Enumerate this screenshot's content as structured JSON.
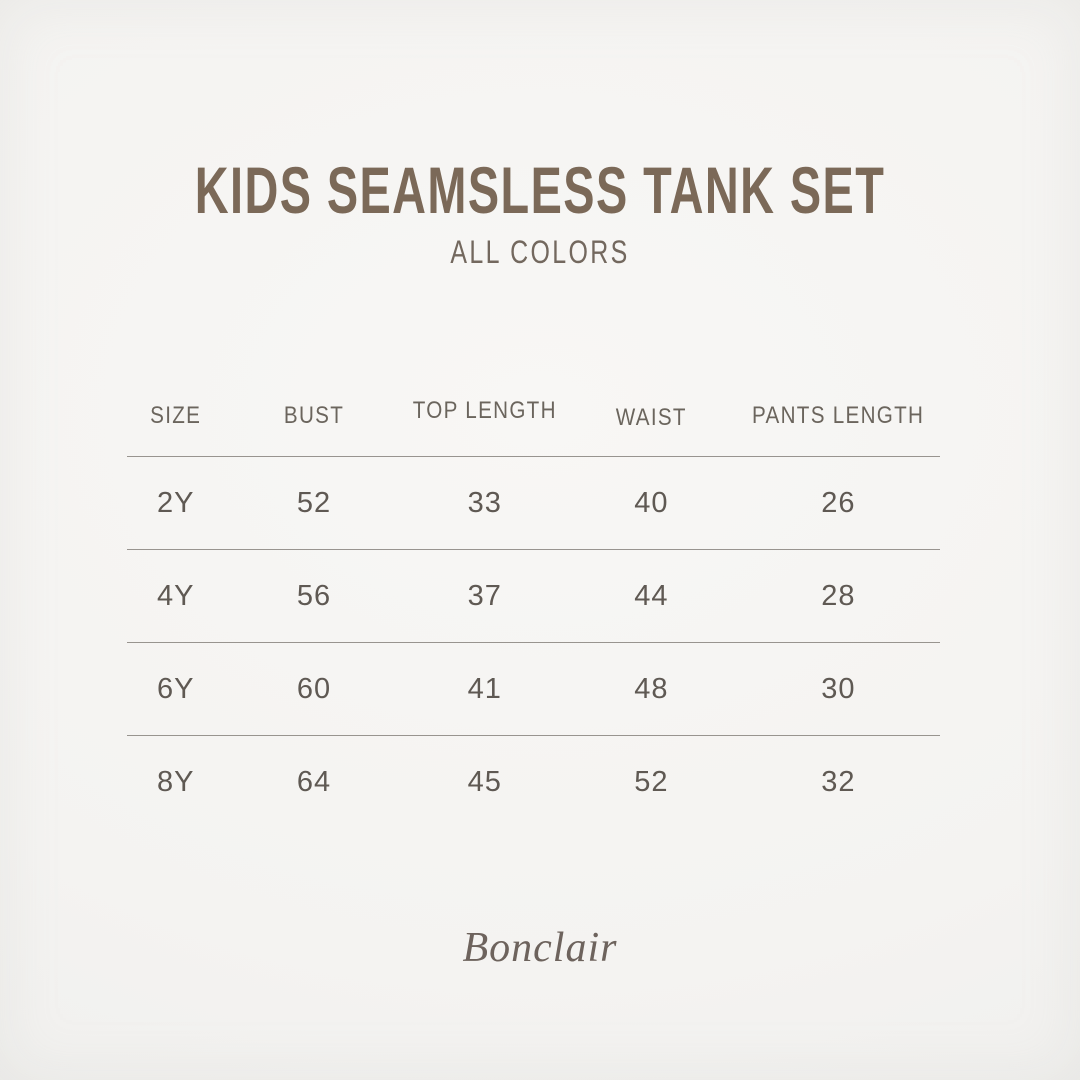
{
  "title": "KIDS SEAMSLESS TANK SET",
  "subtitle": "ALL COLORS",
  "table": {
    "columns": [
      "SIZE",
      "BUST",
      "TOP LENGTH",
      "WAIST",
      "PANTS LENGTH"
    ],
    "rows": [
      [
        "2Y",
        "52",
        "33",
        "40",
        "26"
      ],
      [
        "4Y",
        "56",
        "37",
        "44",
        "28"
      ],
      [
        "6Y",
        "60",
        "41",
        "48",
        "30"
      ],
      [
        "8Y",
        "64",
        "45",
        "52",
        "32"
      ]
    ]
  },
  "brand": "Bonclair",
  "colors": {
    "bg_light": "#f8f7f5",
    "bg_mid": "#f4f3f1",
    "bg_edge": "#ededeb",
    "title": "#7b6958",
    "subtitle": "#73685e",
    "header_text": "#6b655d",
    "cell_text": "#5f5953",
    "line": "#98948f",
    "brand": "#6d635d"
  },
  "chart_data": {
    "type": "table",
    "title": "KIDS SEAMSLESS TANK SET",
    "subtitle": "ALL COLORS",
    "columns": [
      "SIZE",
      "BUST",
      "TOP LENGTH",
      "WAIST",
      "PANTS LENGTH"
    ],
    "rows": [
      {
        "SIZE": "2Y",
        "BUST": 52,
        "TOP LENGTH": 33,
        "WAIST": 40,
        "PANTS LENGTH": 26
      },
      {
        "SIZE": "4Y",
        "BUST": 56,
        "TOP LENGTH": 37,
        "WAIST": 44,
        "PANTS LENGTH": 28
      },
      {
        "SIZE": "6Y",
        "BUST": 60,
        "TOP LENGTH": 41,
        "WAIST": 48,
        "PANTS LENGTH": 30
      },
      {
        "SIZE": "8Y",
        "BUST": 64,
        "TOP LENGTH": 45,
        "WAIST": 52,
        "PANTS LENGTH": 32
      }
    ],
    "footer_brand": "Bonclair"
  }
}
